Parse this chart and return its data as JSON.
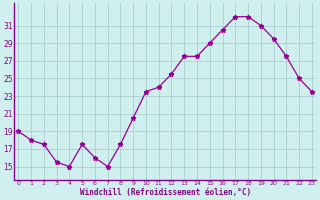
{
  "x": [
    0,
    1,
    2,
    3,
    4,
    5,
    6,
    7,
    8,
    9,
    10,
    11,
    12,
    13,
    14,
    15,
    16,
    17,
    18,
    19,
    20,
    21,
    22,
    23
  ],
  "y": [
    19,
    18,
    17.5,
    15.5,
    15,
    17.5,
    16,
    15,
    17.5,
    20.5,
    23.5,
    24,
    25.5,
    27.5,
    27.5,
    29,
    30.5,
    32,
    32,
    31,
    29.5,
    27.5,
    25,
    23.5
  ],
  "line_color": "#990099",
  "marker": "*",
  "bg_color": "#d0f0f0",
  "grid_color": "#aacece",
  "axis_color": "#880088",
  "xlabel": "Windchill (Refroidissement éolien,°C)",
  "tick_color": "#880088",
  "yticks": [
    15,
    17,
    19,
    21,
    23,
    25,
    27,
    29,
    31
  ],
  "xticks": [
    0,
    1,
    2,
    3,
    4,
    5,
    6,
    7,
    8,
    9,
    10,
    11,
    12,
    13,
    14,
    15,
    16,
    17,
    18,
    19,
    20,
    21,
    22,
    23
  ],
  "ylim": [
    13.5,
    33.5
  ],
  "xlim": [
    -0.3,
    23.3
  ]
}
